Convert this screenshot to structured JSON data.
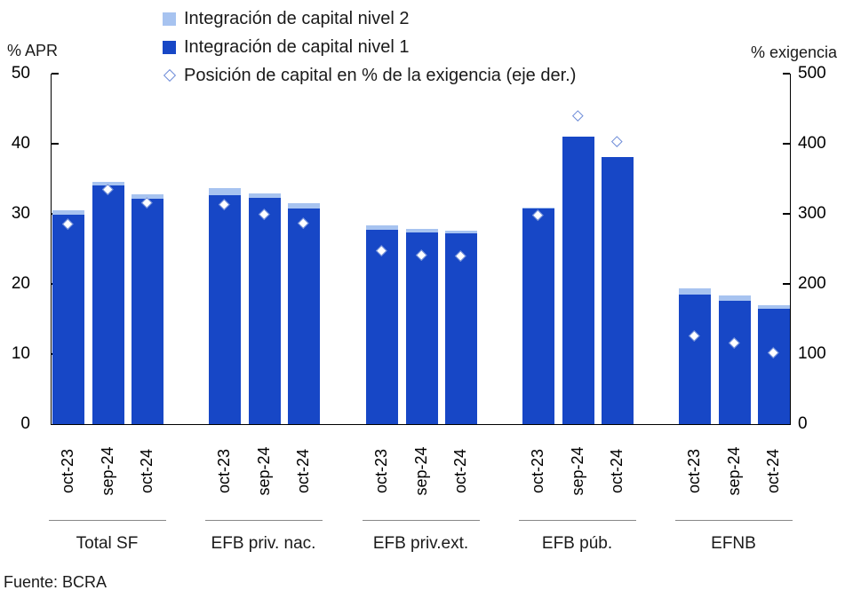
{
  "legend": [
    {
      "label": "Integración de capital nivel 2",
      "swatch": "tier2",
      "color": "#a7c3f0"
    },
    {
      "label": "Integración de capital nivel 1",
      "swatch": "tier1",
      "color": "#1747c6"
    },
    {
      "label": "Posición de capital en % de la exigencia (eje der.)",
      "swatch": "diamond",
      "color": "#6e8cd8"
    }
  ],
  "source": "Fuente: BCRA",
  "colors": {
    "tier1_bar": "#1747c6",
    "tier2_bar": "#a7c3f0",
    "diamond_border": "#6e8cd8",
    "diamond_fill": "#ffffff",
    "axis": "#000000",
    "group_underline": "#878787"
  },
  "chart_data": {
    "type": "bar",
    "stacked": true,
    "grid": false,
    "categories": [
      "Total SF",
      "EFB priv. nac.",
      "EFB priv.ext.",
      "EFB púb.",
      "EFNB"
    ],
    "periods": [
      "oct-23",
      "sep-24",
      "oct-24"
    ],
    "left_axis": {
      "label": "% APR",
      "min": 0,
      "max": 50,
      "ticks": [
        0,
        10,
        20,
        30,
        40,
        50
      ]
    },
    "right_axis": {
      "label": "% exigencia",
      "min": 0,
      "max": 500,
      "ticks": [
        0,
        100,
        200,
        300,
        400,
        500
      ]
    },
    "series": [
      {
        "name": "Integración de capital nivel 1",
        "axis": "left",
        "type": "bar",
        "values": [
          [
            29.9,
            34.0,
            32.2
          ],
          [
            32.6,
            32.3,
            30.8
          ],
          [
            27.7,
            27.4,
            27.2
          ],
          [
            30.7,
            41.0,
            38.1
          ],
          [
            18.5,
            17.6,
            16.5
          ]
        ]
      },
      {
        "name": "Integración de capital nivel 2",
        "axis": "left",
        "type": "bar",
        "values": [
          [
            0.6,
            0.6,
            0.6
          ],
          [
            1.1,
            0.6,
            0.7
          ],
          [
            0.7,
            0.5,
            0.4
          ],
          [
            0.2,
            0.0,
            0.0
          ],
          [
            0.9,
            0.7,
            0.5
          ]
        ]
      },
      {
        "name": "Posición de capital en % de la exigencia (eje der.)",
        "axis": "right",
        "type": "scatter",
        "values": [
          [
            285,
            334,
            315
          ],
          [
            313,
            299,
            286
          ],
          [
            247,
            241,
            239
          ],
          [
            298,
            440,
            403
          ],
          [
            126,
            116,
            102
          ]
        ]
      }
    ]
  }
}
